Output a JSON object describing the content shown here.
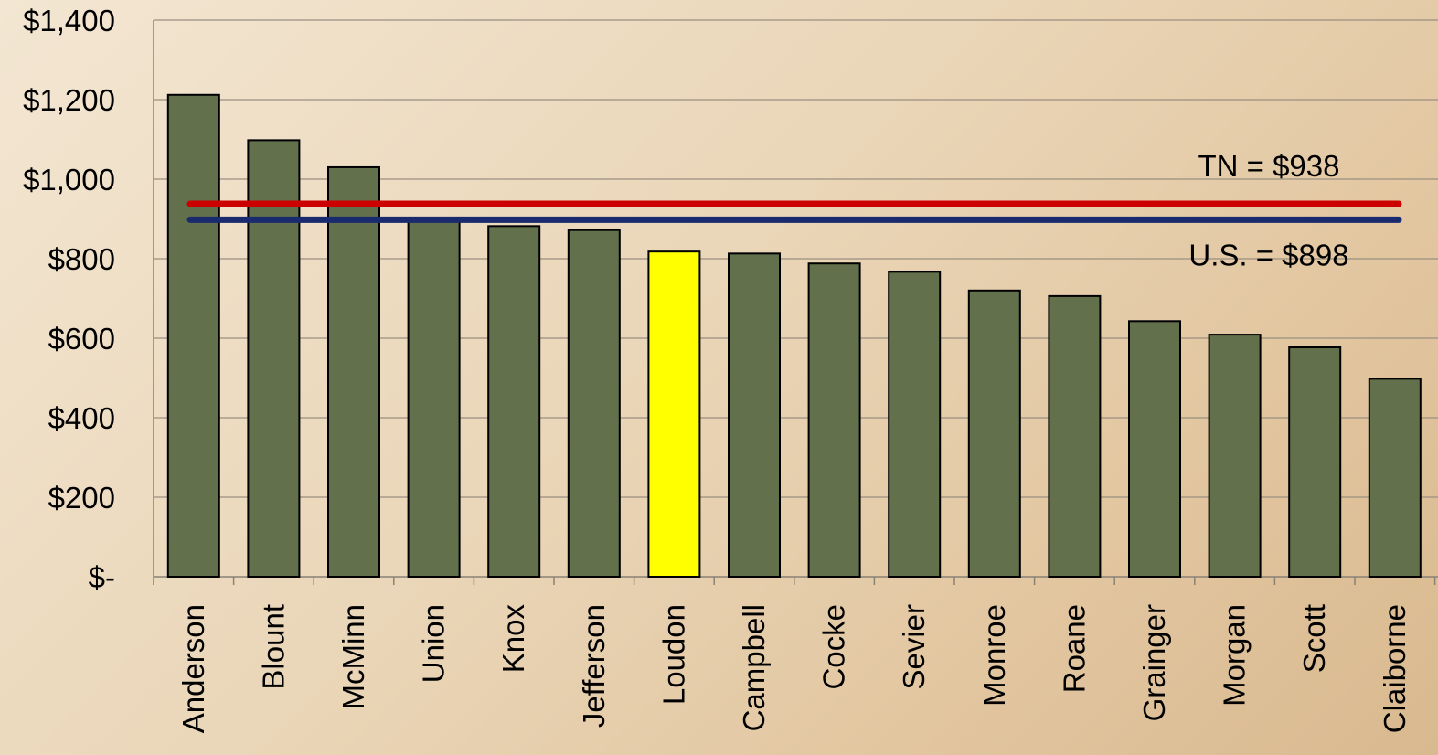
{
  "chart_data": {
    "type": "bar",
    "categories": [
      "Anderson",
      "Blount",
      "McMinn",
      "Union",
      "Knox",
      "Jefferson",
      "Loudon",
      "Campbell",
      "Cocke",
      "Sevier",
      "Monroe",
      "Roane",
      "Grainger",
      "Morgan",
      "Scott",
      "Claiborne"
    ],
    "values": [
      1212,
      1098,
      1030,
      895,
      882,
      872,
      818,
      813,
      788,
      767,
      720,
      706,
      643,
      609,
      577,
      498
    ],
    "highlight_category": "Loudon",
    "colors": {
      "bar": "#63704c",
      "highlight": "#ffff00",
      "tn_line": "#cc0000",
      "us_line": "#1a2a6e",
      "grid": "#9a8f80"
    },
    "ylim": [
      0,
      1400
    ],
    "yticks": [
      0,
      200,
      400,
      600,
      800,
      1000,
      1200,
      1400
    ],
    "ytick_labels": [
      "$-",
      "$200",
      "$400",
      "$600",
      "$800",
      "$1,000",
      "$1,200",
      "$1,400"
    ],
    "grid": true,
    "reference_lines": [
      {
        "label": "TN = $938",
        "value": 938,
        "color": "#cc0000"
      },
      {
        "label": "U.S. = $898",
        "value": 898,
        "color": "#1a2a6e"
      }
    ]
  }
}
